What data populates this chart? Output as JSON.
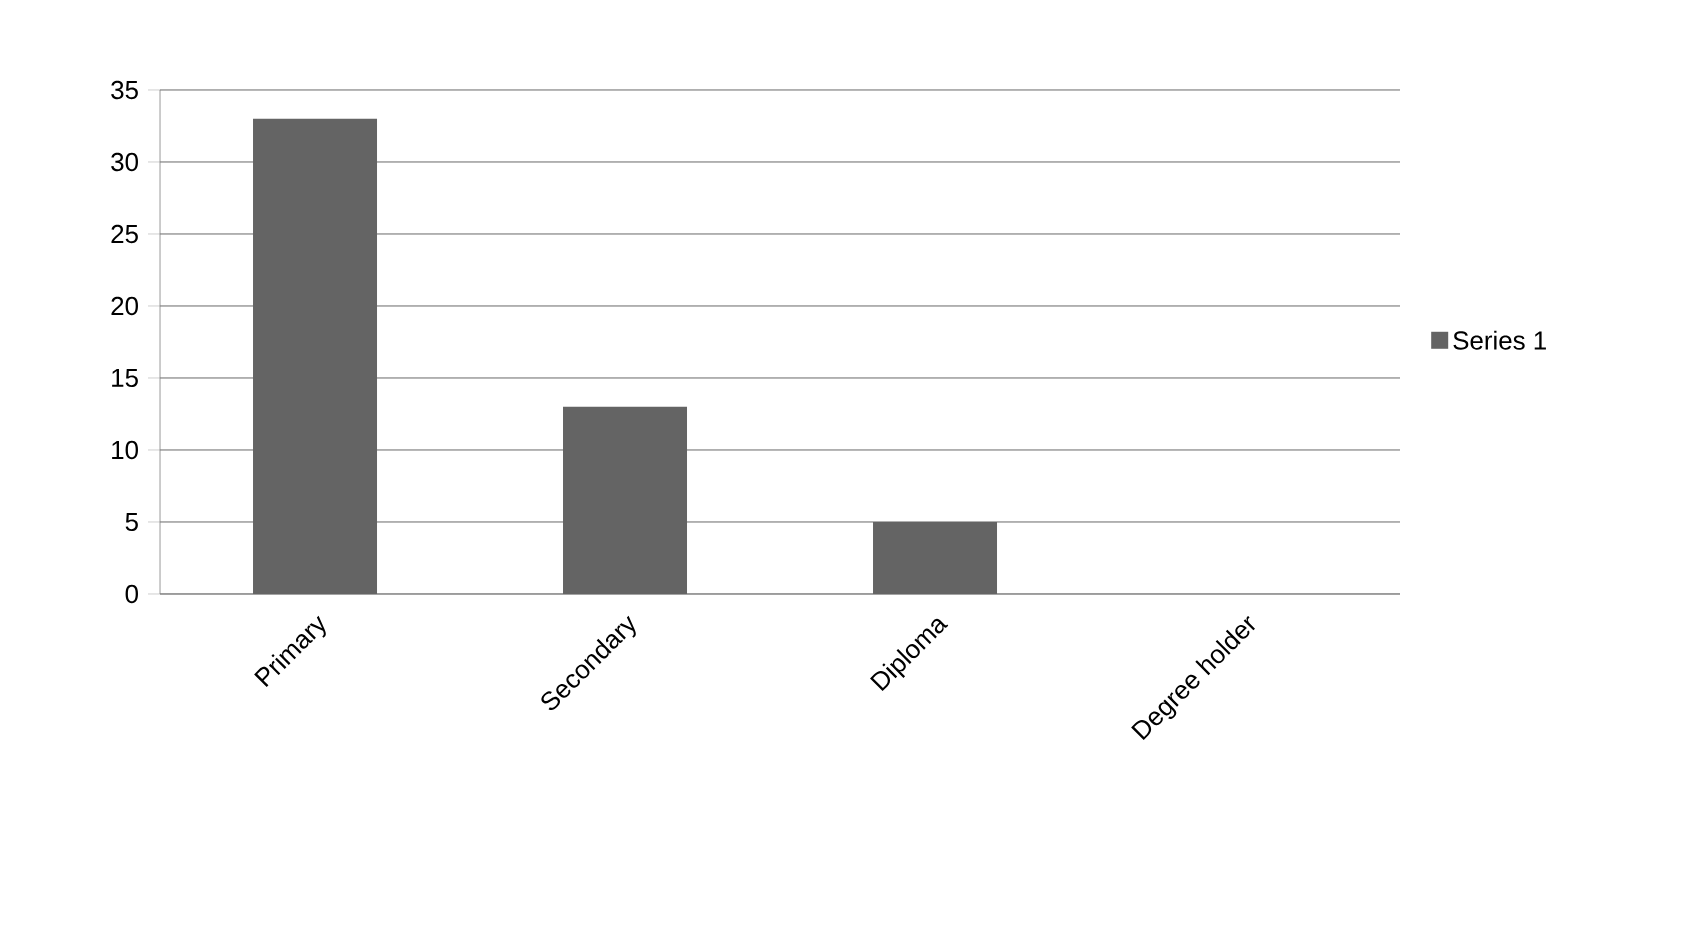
{
  "chart_data": {
    "type": "bar",
    "categories": [
      "Primary",
      "Secondary",
      "Diploma",
      "Degree holder"
    ],
    "series": [
      {
        "name": "Series 1",
        "color": "#646464",
        "values": [
          33,
          13,
          5,
          0
        ]
      }
    ],
    "ylim": [
      0,
      35
    ],
    "yticks": [
      0,
      5,
      10,
      15,
      20,
      25,
      30,
      35
    ],
    "grid": "y",
    "legend": "right"
  }
}
